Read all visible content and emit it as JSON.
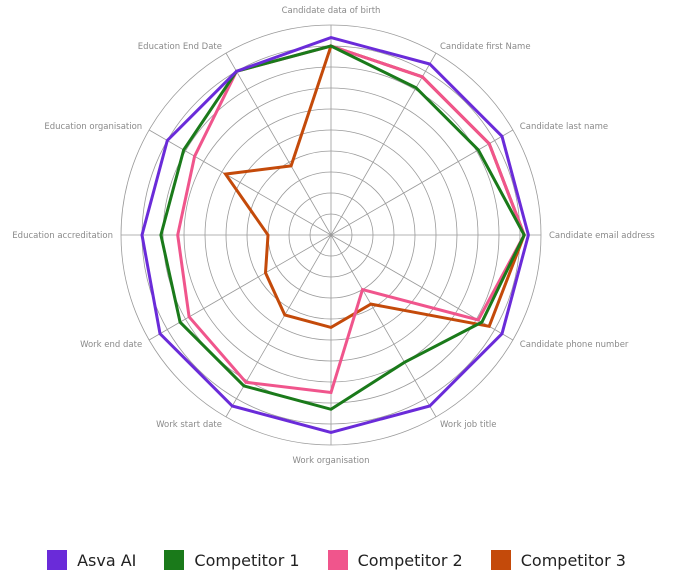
{
  "chart_data": {
    "type": "radar",
    "title": "",
    "axes": [
      "Candidate data of birth",
      "Candidate first Name",
      "Candidate last name",
      "Candidate email address",
      "Candidate phone number",
      "Work job title",
      "Work organisation",
      "Work start date",
      "Work end date",
      "Education accreditation",
      "Education organisation",
      "Education End Date"
    ],
    "rlim": [
      0,
      10
    ],
    "grid_rings": 10,
    "grid": true,
    "legend_position": "bottom",
    "series": [
      {
        "name": "Asva AI",
        "color": "#6a2bd9",
        "values": [
          9.4,
          9.4,
          9.4,
          9.4,
          9.4,
          9.4,
          9.4,
          9.4,
          9.4,
          9.0,
          9.0,
          9.0
        ]
      },
      {
        "name": "Competitor 1",
        "color": "#1a7a1a",
        "values": [
          9.0,
          8.1,
          8.1,
          9.2,
          8.3,
          7.0,
          8.3,
          8.3,
          8.3,
          8.1,
          8.1,
          9.0
        ]
      },
      {
        "name": "Competitor 2",
        "color": "#f0558c",
        "values": [
          9.0,
          8.7,
          8.7,
          9.2,
          8.1,
          3.0,
          7.5,
          8.1,
          7.8,
          7.3,
          7.5,
          9.0
        ]
      },
      {
        "name": "Competitor 3",
        "color": "#c44a0a",
        "values": [
          9.0,
          8.7,
          8.7,
          9.2,
          8.7,
          3.8,
          4.4,
          4.4,
          3.6,
          3.0,
          5.8,
          3.8
        ]
      }
    ]
  }
}
